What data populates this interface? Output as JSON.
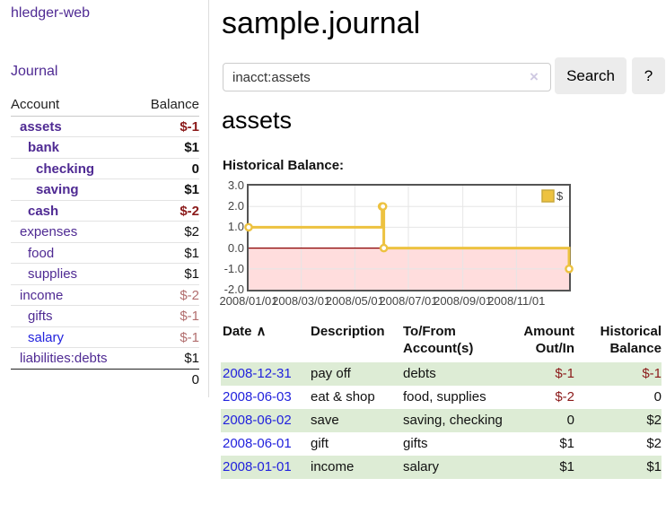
{
  "app": {
    "brand": "hledger-web",
    "nav_journal": "Journal"
  },
  "sidebar": {
    "header": {
      "account": "Account",
      "balance": "Balance"
    },
    "accounts": [
      {
        "name": "assets",
        "balance": "$-1",
        "indent": 1,
        "bold": true,
        "link": "purple",
        "tone": "neg-dark"
      },
      {
        "name": "bank",
        "balance": "$1",
        "indent": 2,
        "bold": true,
        "link": "purple",
        "tone": "pos"
      },
      {
        "name": "checking",
        "balance": "0",
        "indent": 3,
        "bold": true,
        "link": "purple",
        "tone": "pos"
      },
      {
        "name": "saving",
        "balance": "$1",
        "indent": 3,
        "bold": true,
        "link": "purple",
        "tone": "pos"
      },
      {
        "name": "cash",
        "balance": "$-2",
        "indent": 2,
        "bold": true,
        "link": "purple",
        "tone": "neg-dark"
      },
      {
        "name": "expenses",
        "balance": "$2",
        "indent": 1,
        "bold": false,
        "link": "purple",
        "tone": "pos"
      },
      {
        "name": "food",
        "balance": "$1",
        "indent": 2,
        "bold": false,
        "link": "purple",
        "tone": "pos"
      },
      {
        "name": "supplies",
        "balance": "$1",
        "indent": 2,
        "bold": false,
        "link": "purple",
        "tone": "pos"
      },
      {
        "name": "income",
        "balance": "$-2",
        "indent": 1,
        "bold": false,
        "link": "purple",
        "tone": "neg-light"
      },
      {
        "name": "gifts",
        "balance": "$-1",
        "indent": 2,
        "bold": false,
        "link": "purple",
        "tone": "neg-light"
      },
      {
        "name": "salary",
        "balance": "$-1",
        "indent": 2,
        "bold": false,
        "link": "blue",
        "tone": "neg-light"
      },
      {
        "name": "liabilities:debts",
        "balance": "$1",
        "indent": 1,
        "bold": false,
        "link": "purple",
        "tone": "pos"
      }
    ],
    "total": "0"
  },
  "main": {
    "title": "sample.journal",
    "search": {
      "value": "inacct:assets",
      "clear_icon": "×",
      "button": "Search",
      "help": "?"
    },
    "account_heading": "assets",
    "chart_label": "Historical Balance:"
  },
  "chart_data": {
    "type": "line",
    "style": "step",
    "title": "Historical Balance:",
    "series": [
      {
        "name": "$",
        "color": "#edc240",
        "points": [
          [
            "2008-01-01",
            1
          ],
          [
            "2008-06-01",
            2
          ],
          [
            "2008-06-02",
            2
          ],
          [
            "2008-06-03",
            0
          ],
          [
            "2008-12-31",
            -1
          ]
        ]
      }
    ],
    "xlim": [
      "2008-01-01",
      "2008-12-31"
    ],
    "ylim": [
      -2,
      3
    ],
    "x_ticks": [
      "2008/01/01",
      "2008/03/01",
      "2008/05/01",
      "2008/07/01",
      "2008/09/01",
      "2008/11/01"
    ],
    "y_ticks": [
      3.0,
      2.0,
      1.0,
      0.0,
      -1.0,
      -2.0
    ],
    "legend_position": "top-right",
    "grid": true,
    "negative_region_color": "#ffdddd",
    "zero_line_color": "#8b0000"
  },
  "register": {
    "sort_arrow": "∧",
    "headers": {
      "date": "Date",
      "description": "Description",
      "account_line1": "To/From",
      "account_line2": "Account(s)",
      "amount_line1": "Amount",
      "amount_line2": "Out/In",
      "balance_line1": "Historical",
      "balance_line2": "Balance"
    },
    "rows": [
      {
        "date": "2008-12-31",
        "description": "pay off",
        "accounts": "debts",
        "amount": "$-1",
        "amount_negative": true,
        "balance": "$-1",
        "balance_negative": true
      },
      {
        "date": "2008-06-03",
        "description": "eat & shop",
        "accounts": "food, supplies",
        "amount": "$-2",
        "amount_negative": true,
        "balance": "0",
        "balance_negative": false
      },
      {
        "date": "2008-06-02",
        "description": "save",
        "accounts": "saving, checking",
        "amount": "0",
        "amount_negative": false,
        "balance": "$2",
        "balance_negative": false
      },
      {
        "date": "2008-06-01",
        "description": "gift",
        "accounts": "gifts",
        "amount": "$1",
        "amount_negative": false,
        "balance": "$2",
        "balance_negative": false
      },
      {
        "date": "2008-01-01",
        "description": "income",
        "accounts": "salary",
        "amount": "$1",
        "amount_negative": false,
        "balance": "$1",
        "balance_negative": false
      }
    ]
  },
  "colors": {
    "purple_link": "#4f2a93",
    "blue_link": "#2222dd",
    "negative_dark": "#8b1a1a",
    "negative_light": "#b26e6e",
    "stripe_green": "#ddecd5",
    "series_gold": "#edc240",
    "negative_region": "#ffdddd",
    "zero_line": "#8b0000"
  }
}
